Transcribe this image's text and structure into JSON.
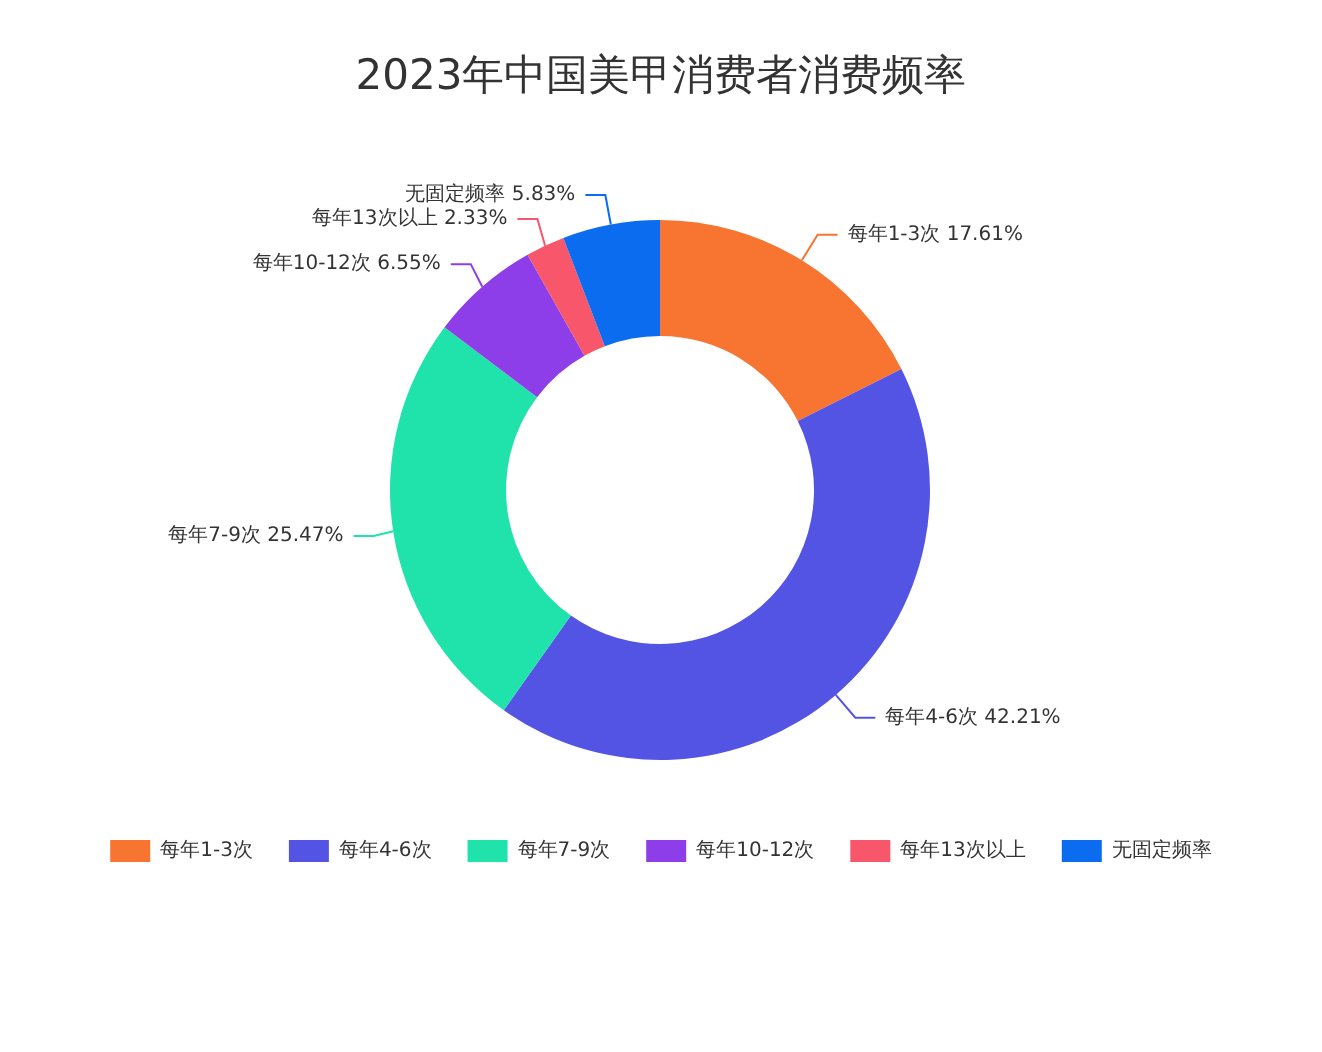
{
  "chart_data": {
    "type": "donut",
    "title": "2023年中国美甲消费者消费频率",
    "categories": [
      "每年1-3次",
      "每年4-6次",
      "每年7-9次",
      "每年10-12次",
      "每年13次以上",
      "无固定频率"
    ],
    "values": [
      17.61,
      42.21,
      25.47,
      6.55,
      2.33,
      5.83
    ],
    "colors": [
      "#f87531",
      "#5454e4",
      "#1fe3aa",
      "#8e3ee8",
      "#f8566a",
      "#0b6cf0"
    ],
    "value_labels": [
      "17.61%",
      "42.21%",
      "25.47%",
      "6.55%",
      "2.33%",
      "5.83%"
    ],
    "legend": "bottom"
  }
}
